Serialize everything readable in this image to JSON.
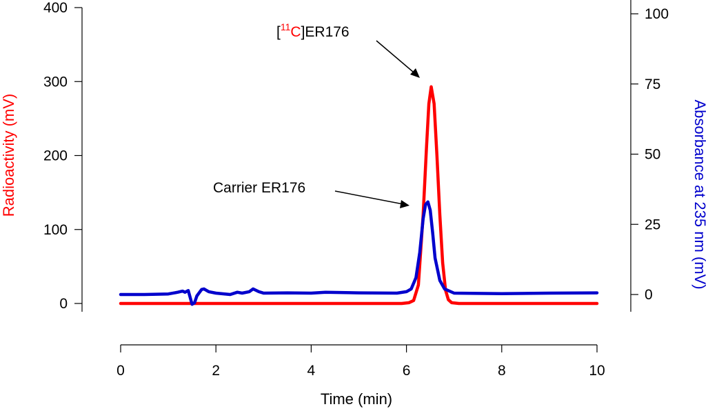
{
  "chart_data": {
    "type": "line",
    "title": "",
    "xlabel": "Time (min)",
    "ylabel_left": "Radioactivity (mV)",
    "ylabel_right": "Absorbance at 235 nm (mV)",
    "xlim": [
      0,
      10
    ],
    "ylim_left": [
      0,
      400
    ],
    "ylim_right": [
      0,
      100
    ],
    "x_ticks": [
      0,
      2,
      4,
      6,
      8,
      10
    ],
    "y_ticks_left": [
      0,
      100,
      200,
      300,
      400
    ],
    "y_ticks_right": [
      0,
      25,
      50,
      75,
      100
    ],
    "grid": false,
    "series": [
      {
        "axis": "left",
        "color": "#ff0000",
        "x": [
          0,
          1,
          2,
          3,
          4,
          5,
          5.9,
          6.05,
          6.15,
          6.25,
          6.35,
          6.42,
          6.47,
          6.52,
          6.58,
          6.64,
          6.7,
          6.76,
          6.82,
          6.88,
          6.95,
          7.1,
          8,
          9,
          10
        ],
        "values": [
          0,
          0,
          0,
          0,
          0,
          0,
          0,
          1,
          4,
          25,
          120,
          210,
          270,
          293,
          270,
          200,
          120,
          55,
          18,
          5,
          1,
          0,
          0,
          0,
          0
        ]
      },
      {
        "axis": "right",
        "color": "#0000cc",
        "x": [
          0,
          0.5,
          1.0,
          1.2,
          1.3,
          1.35,
          1.42,
          1.5,
          1.55,
          1.6,
          1.7,
          1.75,
          1.85,
          2.0,
          2.3,
          2.45,
          2.55,
          2.7,
          2.78,
          2.9,
          3.0,
          3.5,
          4.0,
          4.3,
          5.0,
          5.8,
          6.0,
          6.1,
          6.2,
          6.28,
          6.35,
          6.4,
          6.45,
          6.5,
          6.55,
          6.6,
          6.7,
          6.8,
          7.0,
          7.5,
          8.0,
          9.0,
          10.0
        ],
        "values": [
          0,
          0,
          0.2,
          0.8,
          1.2,
          0.8,
          1.4,
          -3.5,
          -3,
          -0.5,
          1.8,
          2,
          1,
          0.5,
          0,
          0.8,
          0.5,
          1,
          2,
          1,
          0.5,
          0.6,
          0.5,
          0.8,
          0.6,
          0.5,
          1,
          2,
          6,
          15,
          27,
          32,
          33,
          30,
          22,
          13,
          5,
          2,
          0.5,
          0.4,
          0.3,
          0.5,
          0.6
        ]
      }
    ],
    "annotations": [
      {
        "text_prefix": "[",
        "superscript": "11",
        "isotope": "C",
        "text_suffix": "]ER176",
        "colored_part_color": "#ff0000"
      },
      {
        "text": "Carrier ER176"
      }
    ]
  }
}
